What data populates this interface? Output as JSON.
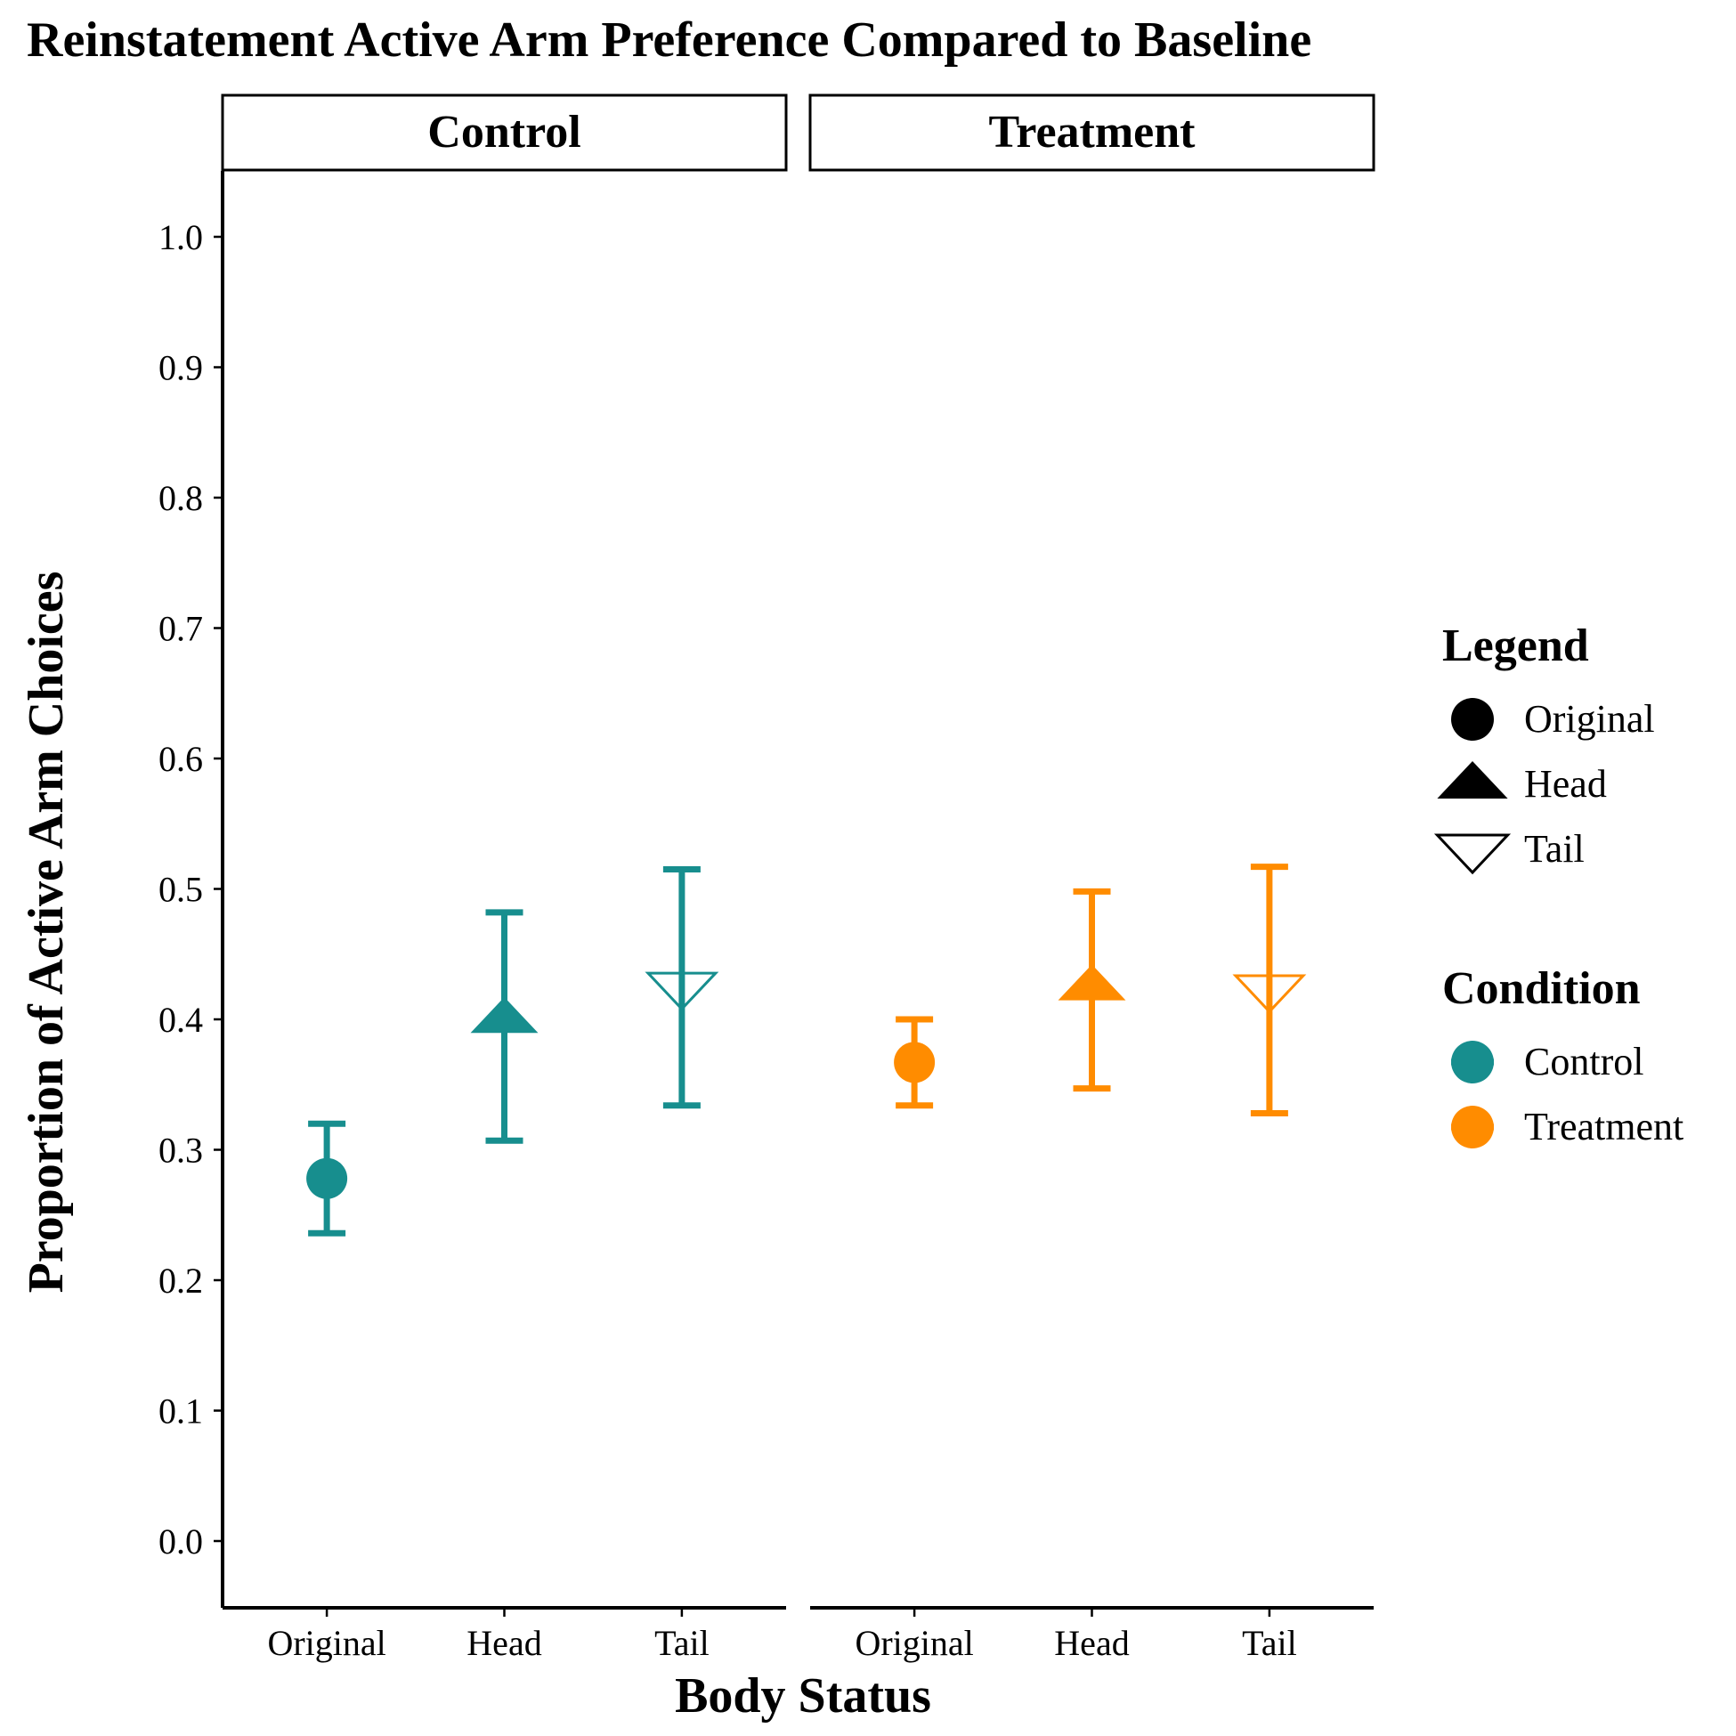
{
  "chart_data": {
    "type": "scatter",
    "title": "Reinstatement Active Arm Preference Compared to Baseline",
    "xlabel": "Body Status",
    "ylabel": "Proportion of Active Arm Choices",
    "ylim": [
      -0.05,
      1.05
    ],
    "yticks": [
      "0.0",
      "0.1",
      "0.2",
      "0.3",
      "0.4",
      "0.5",
      "0.6",
      "0.7",
      "0.8",
      "0.9",
      "1.0"
    ],
    "categories": [
      "Original",
      "Head",
      "Tail"
    ],
    "grid": false,
    "legend_position": "right",
    "panels": [
      {
        "name": "Control",
        "color": "#178e8e",
        "points": [
          {
            "category": "Original",
            "shape": "circle",
            "y": 0.278,
            "ymin": 0.236,
            "ymax": 0.32
          },
          {
            "category": "Head",
            "shape": "triangle",
            "y": 0.4,
            "ymin": 0.307,
            "ymax": 0.482
          },
          {
            "category": "Tail",
            "shape": "triangle-down-open",
            "y": 0.425,
            "ymin": 0.334,
            "ymax": 0.515
          }
        ]
      },
      {
        "name": "Treatment",
        "color": "#ff8c00",
        "points": [
          {
            "category": "Original",
            "shape": "circle",
            "y": 0.367,
            "ymin": 0.334,
            "ymax": 0.4
          },
          {
            "category": "Head",
            "shape": "triangle",
            "y": 0.425,
            "ymin": 0.347,
            "ymax": 0.498
          },
          {
            "category": "Tail",
            "shape": "triangle-down-open",
            "y": 0.423,
            "ymin": 0.328,
            "ymax": 0.517
          }
        ]
      }
    ],
    "legends": [
      {
        "title": "Legend",
        "items": [
          {
            "label": "Original",
            "shape": "circle",
            "color": "#000000"
          },
          {
            "label": "Head",
            "shape": "triangle",
            "color": "#000000"
          },
          {
            "label": "Tail",
            "shape": "triangle-down-open",
            "color": "#000000"
          }
        ]
      },
      {
        "title": "Condition",
        "items": [
          {
            "label": "Control",
            "shape": "circle-bar",
            "color": "#178e8e"
          },
          {
            "label": "Treatment",
            "shape": "circle-bar",
            "color": "#ff8c00"
          }
        ]
      }
    ]
  }
}
